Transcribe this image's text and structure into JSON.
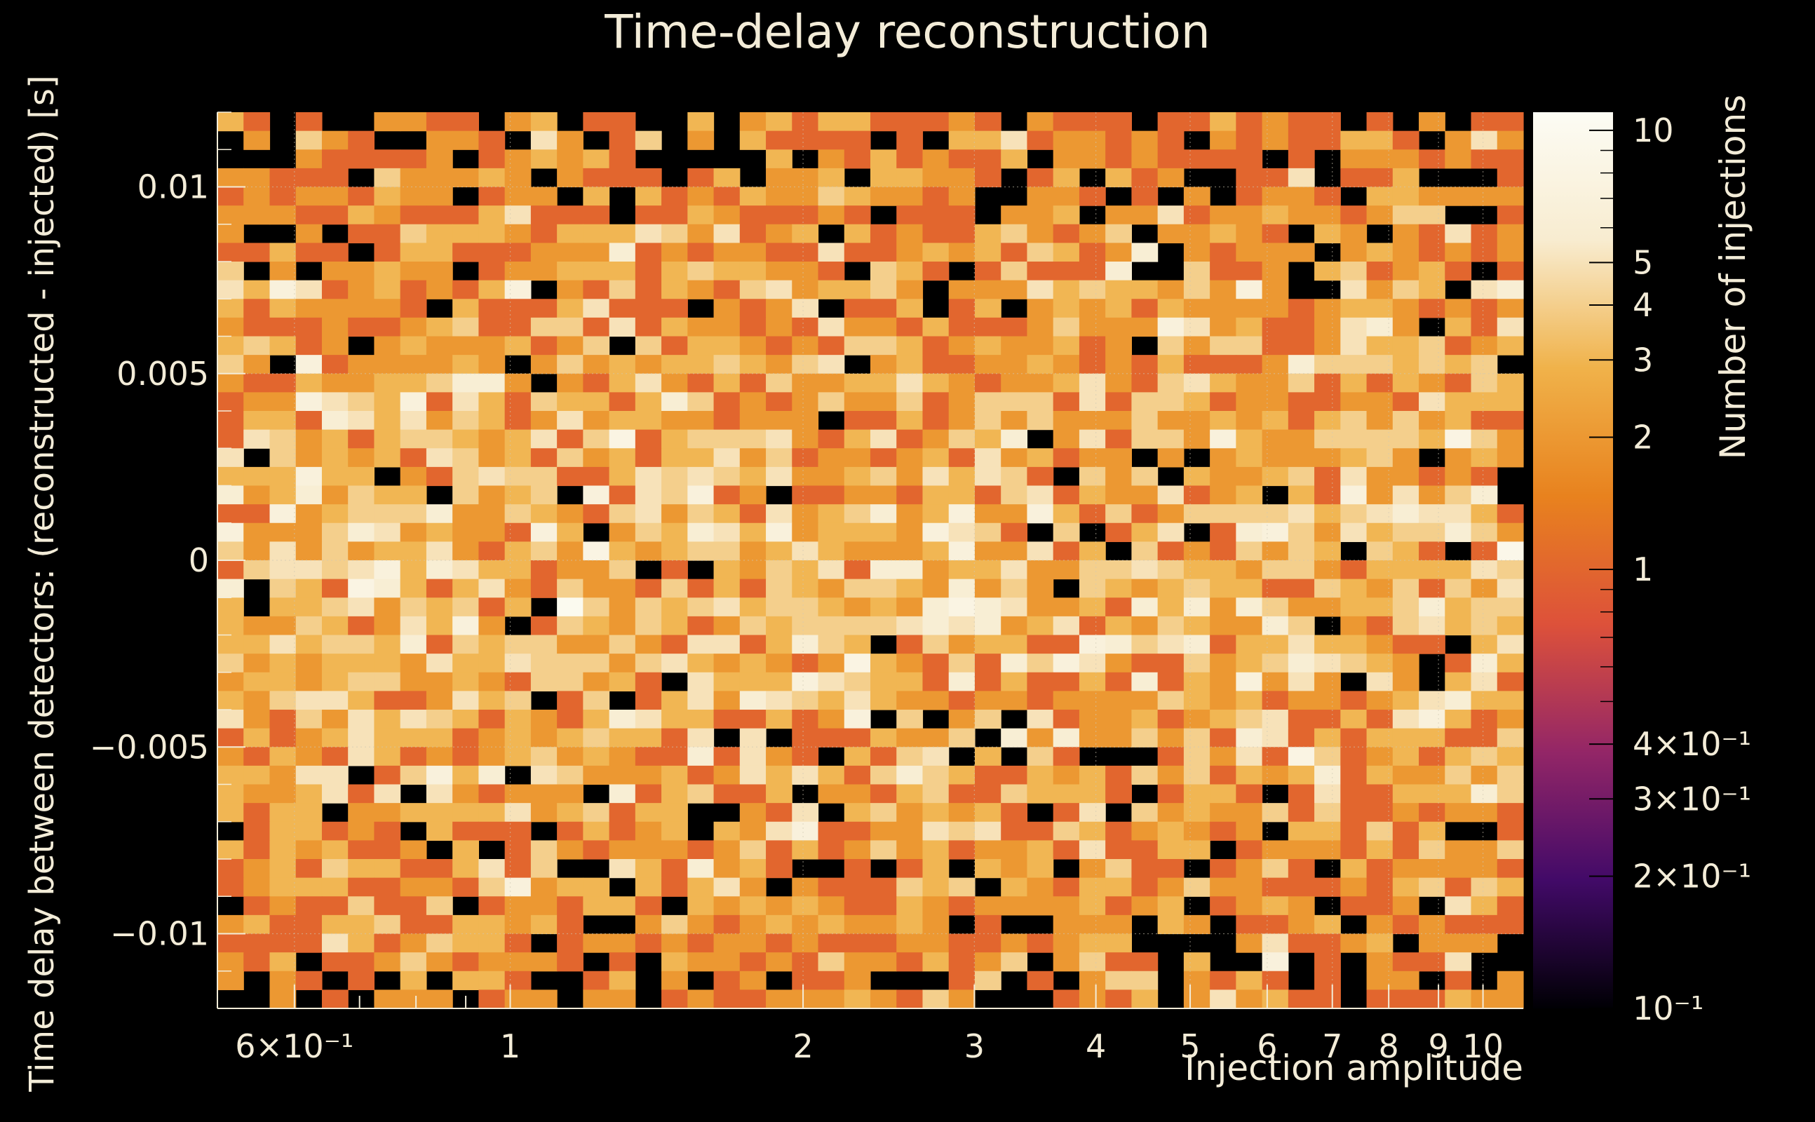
{
  "chart_data": {
    "type": "heatmap",
    "title": "Time-delay reconstruction",
    "xlabel": "Injection amplitude",
    "ylabel": "Time delay between detectors: (reconstructed - injected) [s]",
    "colorbar_label": "Number of injections",
    "x_scale": "log",
    "xlim": [
      0.5,
      11
    ],
    "ylim": [
      -0.012,
      0.012
    ],
    "z_scale": "log",
    "zlim": [
      0.1,
      11
    ],
    "x_bins": 50,
    "y_bins": 48,
    "x_ticks": [
      {
        "value": 0.6,
        "label": "6×10⁻¹"
      },
      {
        "value": 1,
        "label": "1"
      },
      {
        "value": 2,
        "label": "2"
      },
      {
        "value": 3,
        "label": "3"
      },
      {
        "value": 4,
        "label": "4"
      },
      {
        "value": 5,
        "label": "5"
      },
      {
        "value": 6,
        "label": "6"
      },
      {
        "value": 7,
        "label": "7"
      },
      {
        "value": 8,
        "label": "8"
      },
      {
        "value": 9,
        "label": "9"
      },
      {
        "value": 10,
        "label": "10"
      }
    ],
    "y_ticks": [
      {
        "value": 0.01,
        "label": "0.01"
      },
      {
        "value": 0.005,
        "label": "0.005"
      },
      {
        "value": 0,
        "label": "0"
      },
      {
        "value": -0.005,
        "label": "−0.005"
      },
      {
        "value": -0.01,
        "label": "−0.01"
      }
    ],
    "z_ticks": [
      {
        "value": 10,
        "label": "10"
      },
      {
        "value": 5,
        "label": "5"
      },
      {
        "value": 4,
        "label": "4"
      },
      {
        "value": 3,
        "label": "3"
      },
      {
        "value": 2,
        "label": "2"
      },
      {
        "value": 1,
        "label": "1"
      },
      {
        "value": 0.4,
        "label": "4×10⁻¹"
      },
      {
        "value": 0.3,
        "label": "3×10⁻¹"
      },
      {
        "value": 0.2,
        "label": "2×10⁻¹"
      },
      {
        "value": 0.1,
        "label": "10⁻¹"
      }
    ],
    "grid": true,
    "colormap": [
      "#000004",
      "#420a68",
      "#932667",
      "#dd513a",
      "#e8821e",
      "#f0b24a",
      "#f8ecd0",
      "#fcfcf4"
    ],
    "note_values": "Cell counts are integers 0–10 per bin, roughly uniform in time delay with lower density at the |delay| edges."
  }
}
